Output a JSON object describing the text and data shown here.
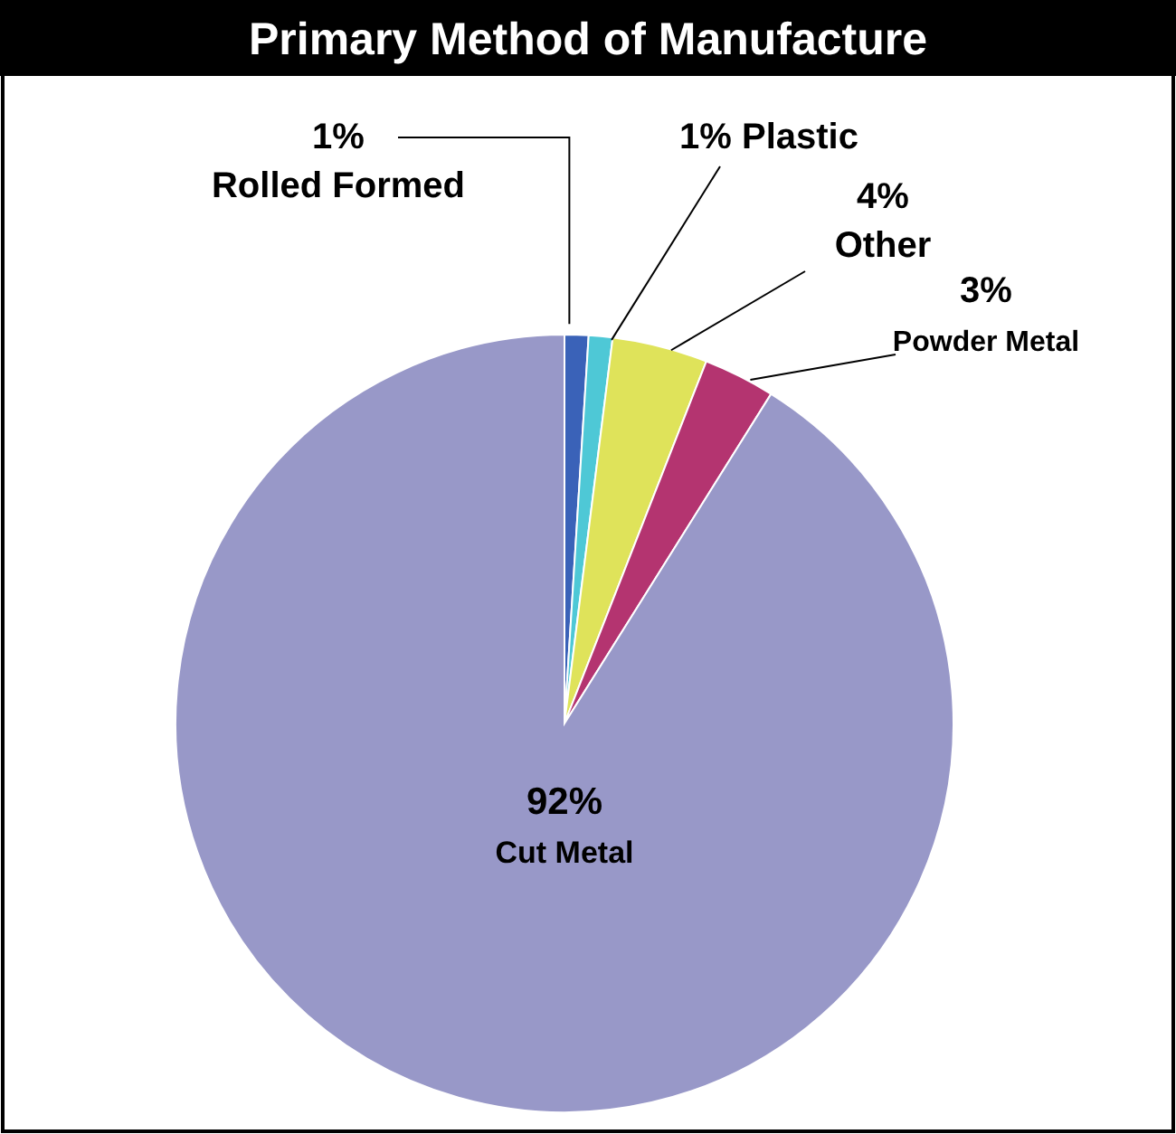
{
  "chart_data": {
    "type": "pie",
    "title": "Primary Method of Manufacture",
    "categories": [
      "Rolled Formed",
      "Plastic",
      "Other",
      "Powder Metal",
      "Cut Metal"
    ],
    "values": [
      1,
      1,
      4,
      3,
      92
    ],
    "value_labels": [
      "1%",
      "1%",
      "4%",
      "3%",
      "92%"
    ],
    "colors": [
      "#3a62b8",
      "#4ec8d6",
      "#dfe35a",
      "#b43470",
      "#9898c8"
    ]
  }
}
